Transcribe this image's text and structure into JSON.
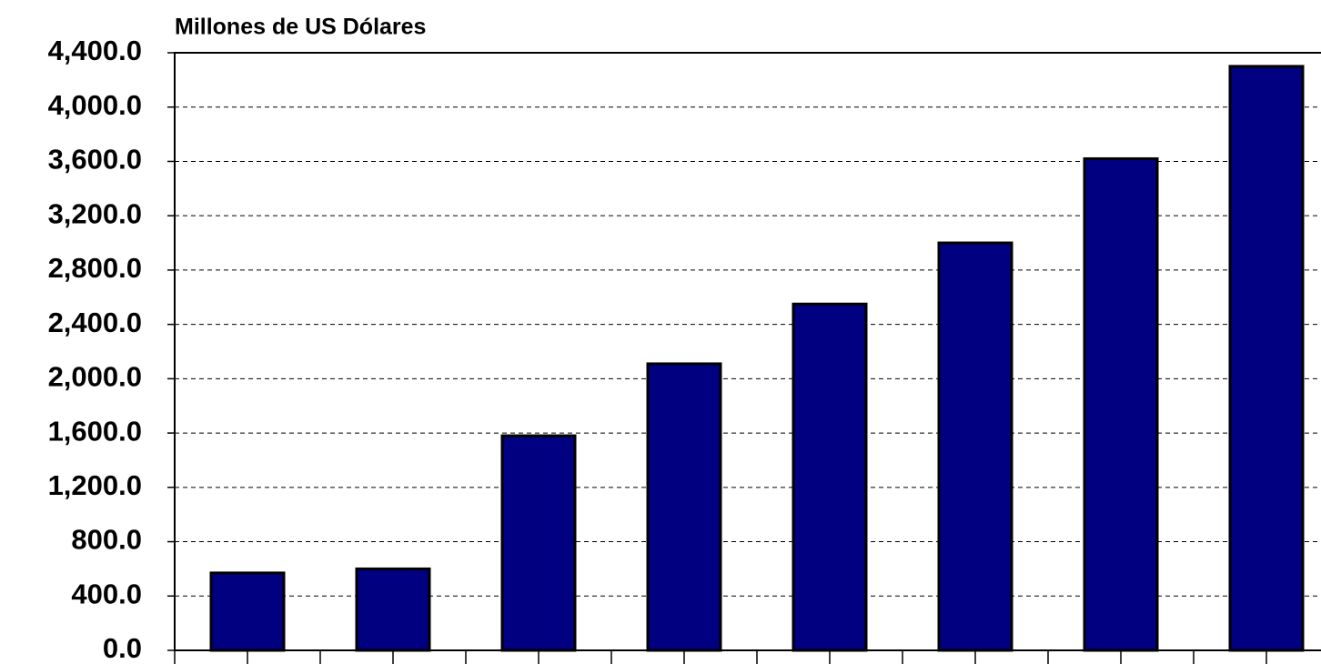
{
  "chart_data": {
    "type": "bar",
    "title": "Millones de US Dólares",
    "categories": [
      null,
      null,
      null,
      null,
      null,
      null,
      null,
      null
    ],
    "values": [
      570,
      600,
      1580,
      2110,
      2550,
      3000,
      3620,
      4300
    ],
    "color": "#000080",
    "ylim": [
      0,
      4400
    ],
    "yticks": [
      {
        "value": 0,
        "label": "0.0"
      },
      {
        "value": 400,
        "label": "400.0"
      },
      {
        "value": 800,
        "label": "800.0"
      },
      {
        "value": 1200,
        "label": "1,200.0"
      },
      {
        "value": 1600,
        "label": "1,600.0"
      },
      {
        "value": 2000,
        "label": "2,000.0"
      },
      {
        "value": 2400,
        "label": "2,400.0"
      },
      {
        "value": 2800,
        "label": "2,800.0"
      },
      {
        "value": 3200,
        "label": "3,200.0"
      },
      {
        "value": 3600,
        "label": "3,600.0"
      },
      {
        "value": 4000,
        "label": "4,000.0"
      },
      {
        "value": 4400,
        "label": "4,400.0"
      }
    ],
    "grid": true
  }
}
